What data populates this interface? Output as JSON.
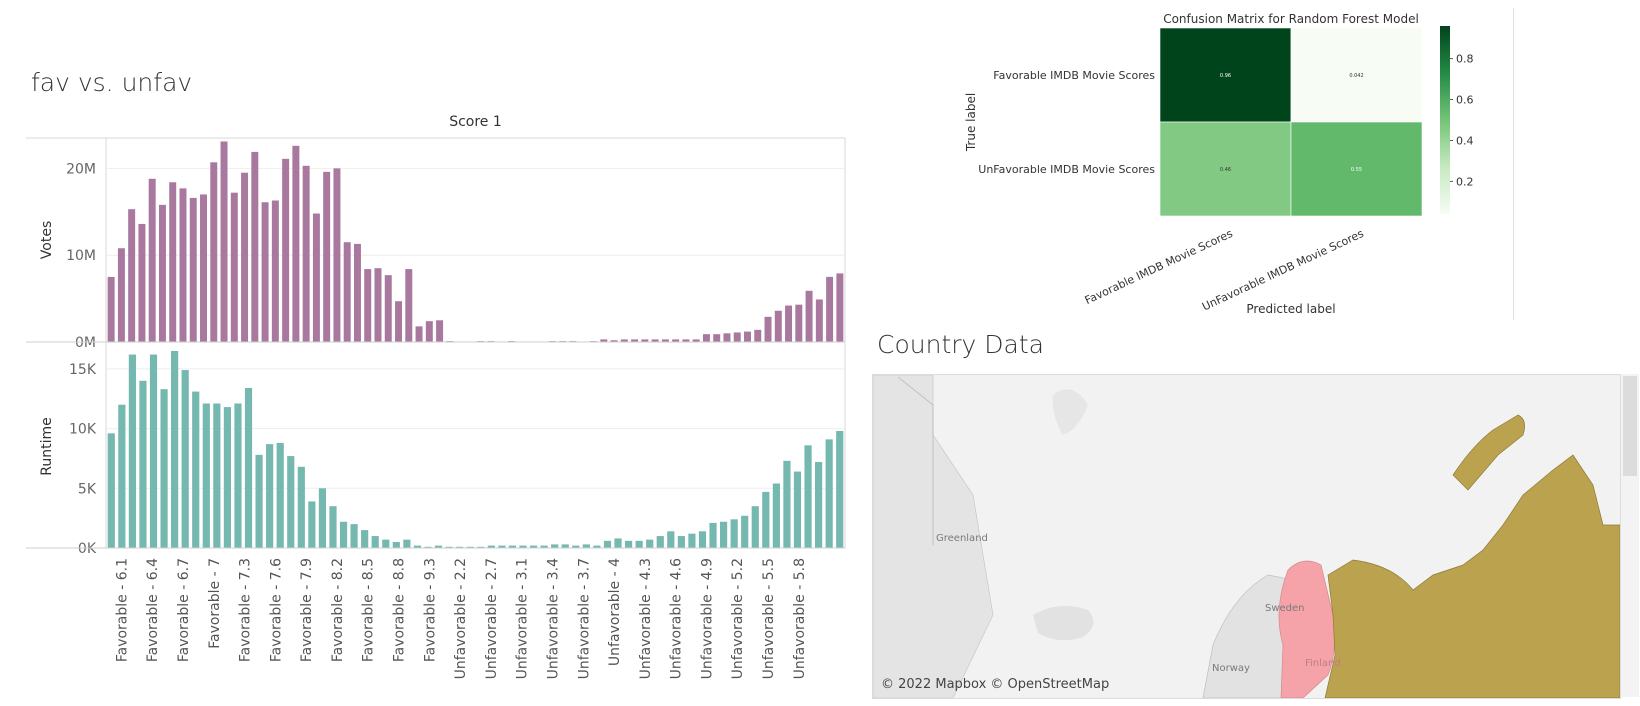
{
  "worksheet": {
    "title": "fav vs. unfav",
    "header": "Score 1"
  },
  "chart_data": [
    {
      "type": "bar",
      "title": "Score 1",
      "x_tick_labels": [
        "Favorable - 6.1",
        "Favorable - 6.4",
        "Favorable - 6.7",
        "Favorable - 7",
        "Favorable - 7.3",
        "Favorable - 7.6",
        "Favorable - 7.9",
        "Favorable - 8.2",
        "Favorable - 8.5",
        "Favorable - 8.8",
        "Favorable - 9.3",
        "Unfavorable - 2.2",
        "Unfavorable - 2.7",
        "Unfavorable - 3.1",
        "Unfavorable - 3.4",
        "Unfavorable - 3.7",
        "Unfavorable - 4",
        "Unfavorable - 4.3",
        "Unfavorable - 4.6",
        "Unfavorable - 4.9",
        "Unfavorable - 5.2",
        "Unfavorable - 5.5",
        "Unfavorable - 5.8"
      ],
      "panels": [
        {
          "ylabel": "Votes",
          "color": "#a9789f",
          "yticks": [
            "20M",
            "10M",
            "0M"
          ],
          "ylim": [
            0,
            23500000
          ],
          "values": [
            7.5,
            10.8,
            15.3,
            13.6,
            18.8,
            15.8,
            18.4,
            17.7,
            16.6,
            17.0,
            20.7,
            23.1,
            17.2,
            19.5,
            21.9,
            16.1,
            16.3,
            21.1,
            22.6,
            20.3,
            14.8,
            19.6,
            20.0,
            11.5,
            11.3,
            8.4,
            8.5,
            7.7,
            4.7,
            8.4,
            1.8,
            2.4,
            2.5,
            0.1,
            0.0,
            0.0,
            0.1,
            0.1,
            0.0,
            0.1,
            0.0,
            0.0,
            0.0,
            0.1,
            0.1,
            0.1,
            0.0,
            0.1,
            0.3,
            0.2,
            0.3,
            0.3,
            0.3,
            0.3,
            0.3,
            0.3,
            0.3,
            0.3,
            0.9,
            0.9,
            1.0,
            1.1,
            1.2,
            1.4,
            2.9,
            3.6,
            4.2,
            4.3,
            5.9,
            4.9,
            7.5,
            7.9
          ]
        },
        {
          "ylabel": "Runtime",
          "color": "#74b8b0",
          "yticks": [
            "15K",
            "10K",
            "5K",
            "0K"
          ],
          "ylim": [
            0,
            17000
          ],
          "values": [
            9.6,
            12.0,
            16.2,
            14.0,
            16.2,
            13.3,
            16.5,
            14.9,
            13.1,
            12.1,
            12.1,
            11.8,
            12.1,
            13.4,
            7.8,
            8.7,
            8.8,
            7.7,
            6.8,
            3.9,
            5.0,
            3.5,
            2.2,
            2.0,
            1.5,
            1.0,
            0.7,
            0.5,
            0.7,
            0.2,
            0.1,
            0.2,
            0.1,
            0.1,
            0.1,
            0.1,
            0.2,
            0.2,
            0.2,
            0.2,
            0.2,
            0.2,
            0.3,
            0.3,
            0.2,
            0.3,
            0.2,
            0.6,
            0.8,
            0.6,
            0.6,
            0.7,
            1.0,
            1.4,
            1.0,
            1.2,
            1.4,
            2.1,
            2.2,
            2.4,
            2.7,
            3.5,
            4.7,
            5.4,
            7.3,
            6.4,
            8.6,
            7.2,
            9.1,
            9.8
          ]
        }
      ]
    },
    {
      "type": "heatmap",
      "title": "Confusion Matrix for Random Forest Model",
      "xlabel": "Predicted label",
      "ylabel": "True label",
      "row_labels": [
        "Favorable IMDB Movie Scores",
        "UnFavorable IMDB Movie Scores"
      ],
      "col_labels": [
        "Favorable IMDB Movie Scores",
        "UnFavorable IMDB Movie Scores"
      ],
      "values": [
        [
          0.96,
          0.042
        ],
        [
          0.46,
          0.55
        ]
      ],
      "cell_text": [
        [
          "0.96",
          "0.042"
        ],
        [
          "0.46",
          "0.55"
        ]
      ],
      "colorbar_ticks": [
        "0.8",
        "0.6",
        "0.4",
        "0.2"
      ],
      "colormap": [
        "#f7fcf5",
        "#c7e9c0",
        "#74c476",
        "#238b45",
        "#00441b"
      ]
    }
  ],
  "map": {
    "title": "Country Data",
    "labels": [
      "Greenland",
      "Sweden",
      "Norway",
      "Finland"
    ],
    "attribution": "© 2022 Mapbox © OpenStreetMap",
    "colors": {
      "highlight": "#f5a3a8",
      "russia": "#bba24e",
      "land": "#e3e3e3",
      "sea": "#f0f0f0"
    }
  }
}
